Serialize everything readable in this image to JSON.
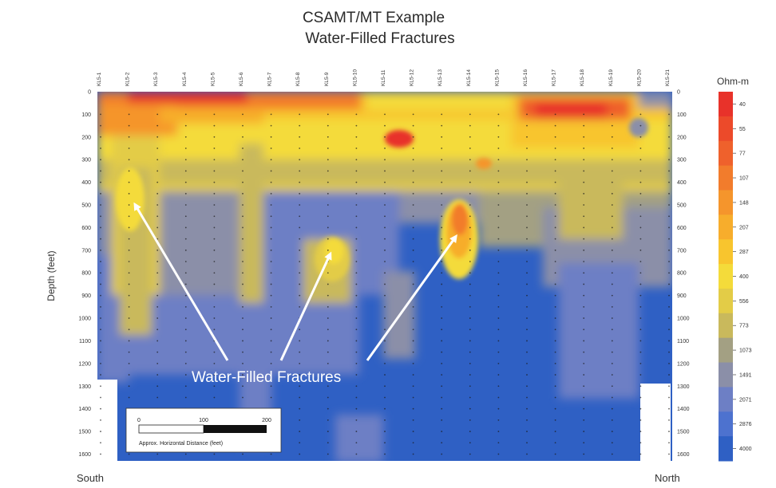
{
  "chart_data": {
    "type": "heatmap",
    "title": "CSAMT/MT Example",
    "subtitle": "Water-Filled Fractures",
    "ylabel": "Depth (feet)",
    "y_ticks": [
      "0",
      "100",
      "200",
      "300",
      "400",
      "500",
      "600",
      "700",
      "800",
      "900",
      "1000",
      "1100",
      "1200",
      "1300",
      "1400",
      "1500",
      "1600"
    ],
    "ylim": [
      0,
      1630
    ],
    "stations": [
      "KL5-1",
      "KL5-2",
      "KL5-3",
      "KL5-4",
      "KL5-5",
      "KL5-6",
      "KL5-7",
      "KL5-8",
      "KL5-9",
      "KL5-10",
      "KL5-11",
      "KL5-12",
      "KL5-13",
      "KL5-14",
      "KL5-15",
      "KL5-16",
      "KL5-17",
      "KL5-18",
      "KL5-19",
      "KL5-20",
      "KL5-21"
    ],
    "x_left_label": "South",
    "x_right_label": "North",
    "colorbar": {
      "unit": "Ohm-m",
      "levels": [
        "40",
        "55",
        "77",
        "107",
        "148",
        "207",
        "287",
        "400",
        "556",
        "773",
        "1073",
        "1491",
        "2071",
        "2876",
        "4000"
      ],
      "colors": [
        "#e8322a",
        "#ec4a2a",
        "#ef612c",
        "#f27c2c",
        "#f5952c",
        "#f7ad2c",
        "#f8c52e",
        "#f4db3a",
        "#e3cc47",
        "#c9b95c",
        "#a3a083",
        "#8b8fa8",
        "#6d7fc5",
        "#4d72cf",
        "#2f60c4"
      ]
    },
    "annotation": "Water-Filled Fractures",
    "scale_bar": {
      "ticks": [
        "0",
        "100",
        "200"
      ],
      "label": "Approx. Horizontal Distance (feet)"
    }
  }
}
